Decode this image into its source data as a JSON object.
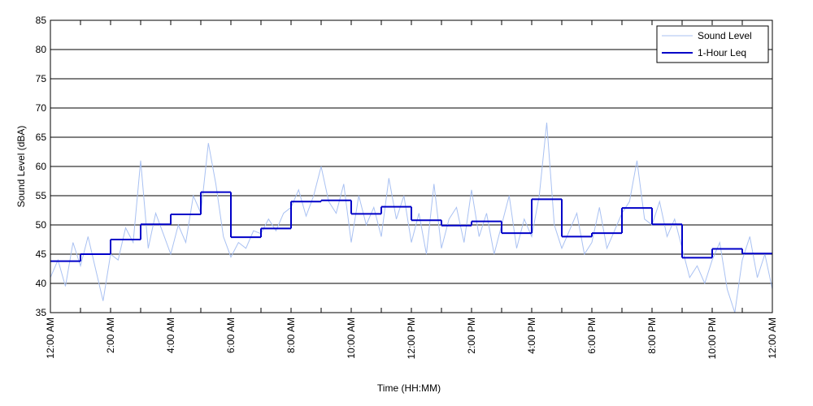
{
  "chart_data": {
    "type": "line",
    "xlabel": "Time (HH:MM)",
    "ylabel": "Sound Level (dBA)",
    "xlim": [
      0,
      24
    ],
    "ylim": [
      35,
      85
    ],
    "yticks": [
      35,
      40,
      45,
      50,
      55,
      60,
      65,
      70,
      75,
      80,
      85
    ],
    "xticks": [
      {
        "value": 0,
        "label": "12:00 AM"
      },
      {
        "value": 1,
        "label": null
      },
      {
        "value": 2,
        "label": "2:00 AM"
      },
      {
        "value": 3,
        "label": null
      },
      {
        "value": 4,
        "label": "4:00 AM"
      },
      {
        "value": 5,
        "label": null
      },
      {
        "value": 6,
        "label": "6:00 AM"
      },
      {
        "value": 7,
        "label": null
      },
      {
        "value": 8,
        "label": "8:00 AM"
      },
      {
        "value": 9,
        "label": null
      },
      {
        "value": 10,
        "label": "10:00 AM"
      },
      {
        "value": 11,
        "label": null
      },
      {
        "value": 12,
        "label": "12:00 PM"
      },
      {
        "value": 13,
        "label": null
      },
      {
        "value": 14,
        "label": "2:00 PM"
      },
      {
        "value": 15,
        "label": null
      },
      {
        "value": 16,
        "label": "4:00 PM"
      },
      {
        "value": 17,
        "label": null
      },
      {
        "value": 18,
        "label": "6:00 PM"
      },
      {
        "value": 19,
        "label": null
      },
      {
        "value": 20,
        "label": "8:00 PM"
      },
      {
        "value": 21,
        "label": null
      },
      {
        "value": 22,
        "label": "10:00 PM"
      },
      {
        "value": 23,
        "label": null
      },
      {
        "value": 24,
        "label": "12:00 AM"
      }
    ],
    "grid": "y",
    "legend": "upper right",
    "series": [
      {
        "name": "Sound Level",
        "color": "#a9c1f2",
        "width": 1,
        "x": [
          0,
          0.25,
          0.5,
          0.75,
          1,
          1.25,
          1.5,
          1.75,
          2,
          2.25,
          2.5,
          2.75,
          3,
          3.25,
          3.5,
          3.75,
          4,
          4.25,
          4.5,
          4.75,
          5,
          5.25,
          5.5,
          5.75,
          6,
          6.25,
          6.5,
          6.75,
          7,
          7.25,
          7.5,
          7.75,
          8,
          8.25,
          8.5,
          8.75,
          9,
          9.25,
          9.5,
          9.75,
          10,
          10.25,
          10.5,
          10.75,
          11,
          11.25,
          11.5,
          11.75,
          12,
          12.25,
          12.5,
          12.75,
          13,
          13.25,
          13.5,
          13.75,
          14,
          14.25,
          14.5,
          14.75,
          15,
          15.25,
          15.5,
          15.75,
          16,
          16.25,
          16.5,
          16.75,
          17,
          17.25,
          17.5,
          17.75,
          18,
          18.25,
          18.5,
          18.75,
          19,
          19.25,
          19.5,
          19.75,
          20,
          20.25,
          20.5,
          20.75,
          21,
          21.25,
          21.5,
          21.75,
          22,
          22.25,
          22.5,
          22.75,
          23,
          23.25,
          23.5,
          23.75,
          24
        ],
        "values": [
          41,
          44,
          39.5,
          47,
          43,
          48,
          42.5,
          37,
          45,
          44,
          49.5,
          47,
          61,
          46,
          52,
          48.5,
          45,
          50,
          47,
          55,
          52,
          64,
          57,
          48,
          44.5,
          47,
          46,
          49,
          48.5,
          51,
          49,
          52,
          53,
          56,
          51.5,
          55,
          60,
          54,
          52,
          57,
          47,
          55,
          50,
          53,
          48,
          58,
          51,
          55,
          47,
          52,
          45,
          57,
          46,
          51,
          53,
          47,
          56,
          48,
          52,
          45,
          50,
          55,
          46,
          51,
          48,
          55,
          67.5,
          50,
          46,
          49,
          52,
          45,
          47,
          53,
          46,
          49,
          52,
          54,
          61,
          51,
          50,
          54,
          48,
          51,
          46,
          41,
          43,
          40,
          44,
          47,
          39,
          35,
          44,
          48,
          41,
          45,
          39
        ]
      },
      {
        "name": "1-Hour Leq",
        "color": "#0000c8",
        "width": 2,
        "step": "post",
        "x": [
          0,
          1,
          2,
          3,
          4,
          5,
          6,
          7,
          8,
          9,
          10,
          11,
          12,
          13,
          14,
          15,
          16,
          17,
          18,
          19,
          20,
          21,
          22,
          23
        ],
        "values": [
          43.8,
          45.0,
          47.5,
          50.1,
          51.8,
          55.6,
          47.9,
          49.4,
          54.0,
          54.2,
          51.9,
          53.1,
          50.8,
          49.9,
          50.6,
          48.6,
          54.4,
          48.0,
          48.6,
          52.9,
          50.1,
          44.4,
          45.9,
          45.1
        ]
      }
    ]
  }
}
